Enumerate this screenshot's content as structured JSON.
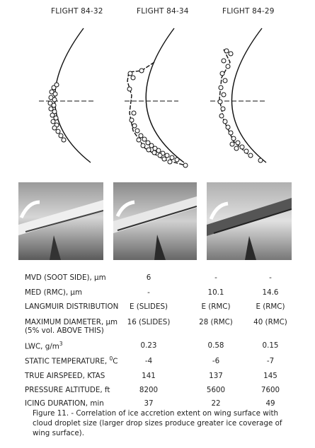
{
  "flights": [
    {
      "title": "FLIGHT 84-32"
    },
    {
      "title": "FLIGHT 84-34"
    },
    {
      "title": "FLIGHT 84-29"
    }
  ],
  "properties": {
    "mvd": {
      "label": "MVD (SOOT SIDE), µm",
      "values": [
        "6",
        "-",
        "-"
      ]
    },
    "med": {
      "label": "MED (RMC), µm",
      "values": [
        "-",
        "10.1",
        "14.6"
      ]
    },
    "langmuir": {
      "label": "LANGMUIR DISTRIBUTION",
      "values": [
        "E (SLIDES)",
        "E (RMC)",
        "E (RMC)"
      ]
    },
    "maxdiam": {
      "label": "MAXIMUM DIAMETER, µm",
      "sublabel": "(5% vol. ABOVE THIS)",
      "values": [
        "16 (SLIDES)",
        "28 (RMC)",
        "40 (RMC)"
      ]
    },
    "lwc": {
      "label": "LWC, g/m",
      "label_sup": "3",
      "values": [
        "0.23",
        "0.58",
        "0.15"
      ]
    },
    "static_temp": {
      "label": "STATIC TEMPERATURE, ",
      "label_sup": "0",
      "label_suffix": "C",
      "values": [
        "-4",
        "-6",
        "-7"
      ]
    },
    "airspeed": {
      "label": "TRUE AIRSPEED, KTAS",
      "values": [
        "141",
        "137",
        "145"
      ]
    },
    "altitude": {
      "label": "PRESSURE ALTITUDE, ft",
      "values": [
        "8200",
        "5600",
        "7600"
      ]
    },
    "duration": {
      "label": "ICING DURATION, min",
      "values": [
        "37",
        "22",
        "49"
      ]
    }
  },
  "caption": "Figure 11. - Correlation of ice accretion extent on wing surface with cloud droplet size (larger drop sizes produce greater ice coverage of wing surface)."
}
